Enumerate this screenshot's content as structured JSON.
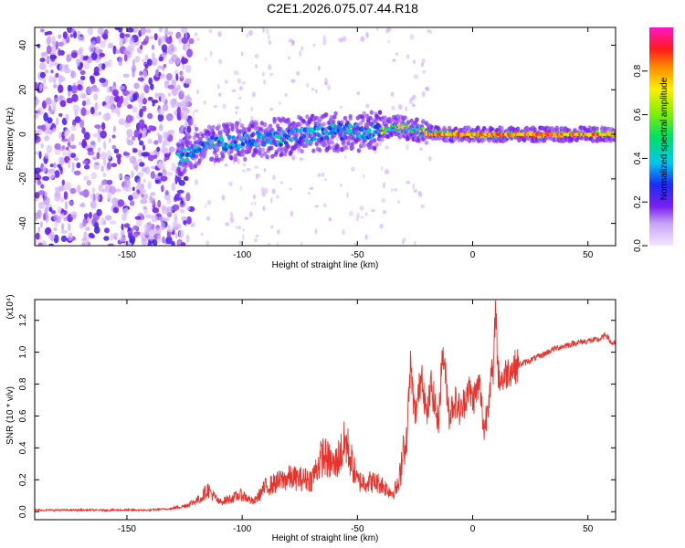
{
  "title": "C2E1.2026.075.07.44.R18",
  "colors": {
    "snr_line": "#e8322c",
    "background": "#ffffff",
    "axis": "#000000"
  },
  "chart_data": [
    {
      "type": "heatmap",
      "xlabel": "Height of straight line (km)",
      "ylabel": "Frequency (Hz)",
      "xlim": [
        -190,
        62
      ],
      "ylim": [
        -50,
        48
      ],
      "xticks": [
        -150,
        -100,
        -50,
        0,
        50
      ],
      "yticks": [
        -40,
        -20,
        0,
        20,
        40
      ],
      "grid": false,
      "ridge": {
        "x": [
          -127,
          -120,
          -110,
          -100,
          -90,
          -80,
          -70,
          -60,
          -50,
          -40,
          -35,
          -30,
          -20,
          -10,
          0,
          10,
          20,
          40,
          62
        ],
        "y": [
          -10,
          -6,
          -4,
          -3,
          -2,
          -1,
          0,
          1,
          1,
          2,
          4,
          3,
          1,
          0,
          0,
          0,
          0,
          0,
          0
        ]
      },
      "noise_region_x": [
        -190,
        -128
      ],
      "colorbar": {
        "label": "Normalized spectral amplitude",
        "range": [
          0.0,
          1.0
        ],
        "ticks": [
          "0.0",
          "0.2",
          "0.4",
          "0.6",
          "0.8"
        ],
        "colormap": "purple-blue-cyan-green-yellow-orange-red-magenta"
      }
    },
    {
      "type": "line",
      "xlabel": "Height of straight line (km)",
      "ylabel": "SNR (10 * v/v)",
      "scale_note": "(x10⁴)",
      "xlim": [
        -190,
        62
      ],
      "ylim": [
        -0.05,
        1.33
      ],
      "xticks": [
        -150,
        -100,
        -50,
        0,
        50
      ],
      "yticks": [
        "0.0",
        "0.2",
        "0.4",
        "0.6",
        "0.8",
        "1.0",
        "1.2"
      ],
      "grid": false,
      "series": [
        {
          "x": [
            -190,
            -160,
            -140,
            -130,
            -125,
            -118,
            -115,
            -110,
            -100,
            -95,
            -90,
            -80,
            -70,
            -65,
            -60,
            -55,
            -50,
            -45,
            -40,
            -35,
            -32,
            -30,
            -29,
            -27,
            -25,
            -22,
            -20,
            -18,
            -15,
            -13,
            -10,
            -8,
            -5,
            -2,
            0,
            3,
            5,
            8,
            9,
            10,
            11,
            13,
            15,
            20,
            25,
            30,
            35,
            40,
            45,
            50,
            55,
            58,
            60,
            62
          ],
          "y": [
            0.01,
            0.01,
            0.01,
            0.02,
            0.03,
            0.07,
            0.12,
            0.05,
            0.09,
            0.05,
            0.13,
            0.18,
            0.17,
            0.3,
            0.24,
            0.37,
            0.16,
            0.16,
            0.15,
            0.1,
            0.14,
            0.45,
            0.35,
            0.92,
            0.59,
            0.89,
            0.58,
            0.8,
            0.55,
            1.01,
            0.6,
            0.7,
            0.62,
            0.78,
            0.7,
            0.8,
            0.5,
            0.85,
            0.85,
            1.33,
            0.85,
            0.83,
            0.88,
            0.92,
            0.95,
            0.98,
            1.02,
            1.04,
            1.06,
            1.07,
            1.08,
            1.11,
            1.06,
            1.05
          ]
        }
      ]
    }
  ]
}
